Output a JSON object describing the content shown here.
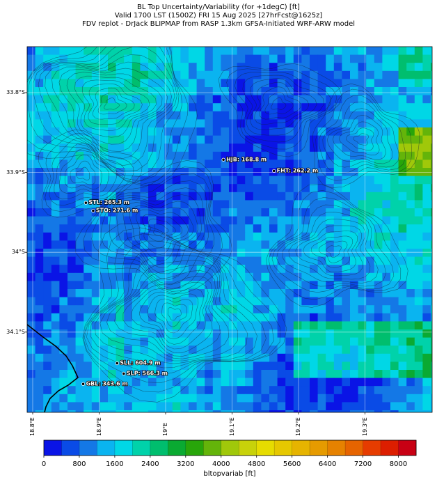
{
  "title": {
    "line1": "BL Top Uncertainty/Variability (for +1degC) [ft]",
    "line2": "Valid 1700 LST (1500Z) FRI 15 Aug 2025 [27hrFcst@1625z]",
    "line3": "FDV replot - DrJack BLIPMAP from RASP 1.3km GFSA-Initiated WRF-ARW model"
  },
  "map": {
    "lat_labels": [
      "33.8°S",
      "33.9°S",
      "34°S",
      "34.1°S"
    ],
    "lon_labels": [
      "18.8°E",
      "18.9°E",
      "19°E",
      "19.1°E",
      "19.2°E",
      "19.3°E"
    ],
    "lat_values": [
      -33.8,
      -33.9,
      -34.0,
      -34.1
    ],
    "lon_values": [
      18.8,
      18.9,
      19.0,
      19.1,
      19.2,
      19.3
    ],
    "stations": [
      {
        "name": "HJB: 168.8 m",
        "lat": -33.884,
        "lon": 19.087
      },
      {
        "name": "FHT: 262.2 m",
        "lat": -33.898,
        "lon": 19.163
      },
      {
        "name": "STL: 265.3 m",
        "lat": -33.938,
        "lon": 18.88
      },
      {
        "name": "STO: 271.6 m",
        "lat": -33.948,
        "lon": 18.891
      },
      {
        "name": "SLL: 604.9 m",
        "lat": -34.139,
        "lon": 18.927
      },
      {
        "name": "SLP: 566.3 m",
        "lat": -34.152,
        "lon": 18.937
      },
      {
        "name": "GBL: 343.6 m",
        "lat": -34.165,
        "lon": 18.876
      }
    ]
  },
  "colorbar": {
    "label": "bltopvariab [ft]",
    "ticks": [
      "0",
      "800",
      "1600",
      "2400",
      "3200",
      "4000",
      "4800",
      "5600",
      "6400",
      "7200",
      "8000"
    ],
    "min": 0,
    "max": 8400,
    "step": 400,
    "colors": [
      "#0a14e6",
      "#0a4be6",
      "#1478e6",
      "#0ab4f0",
      "#00d7e6",
      "#00d2aa",
      "#00be6e",
      "#0aaa32",
      "#28a50a",
      "#64b40a",
      "#a0c80a",
      "#c8d20a",
      "#e6dc00",
      "#e6c800",
      "#e6b400",
      "#e69b00",
      "#e68200",
      "#e66400",
      "#e63c00",
      "#dc1e00",
      "#c80014"
    ]
  }
}
